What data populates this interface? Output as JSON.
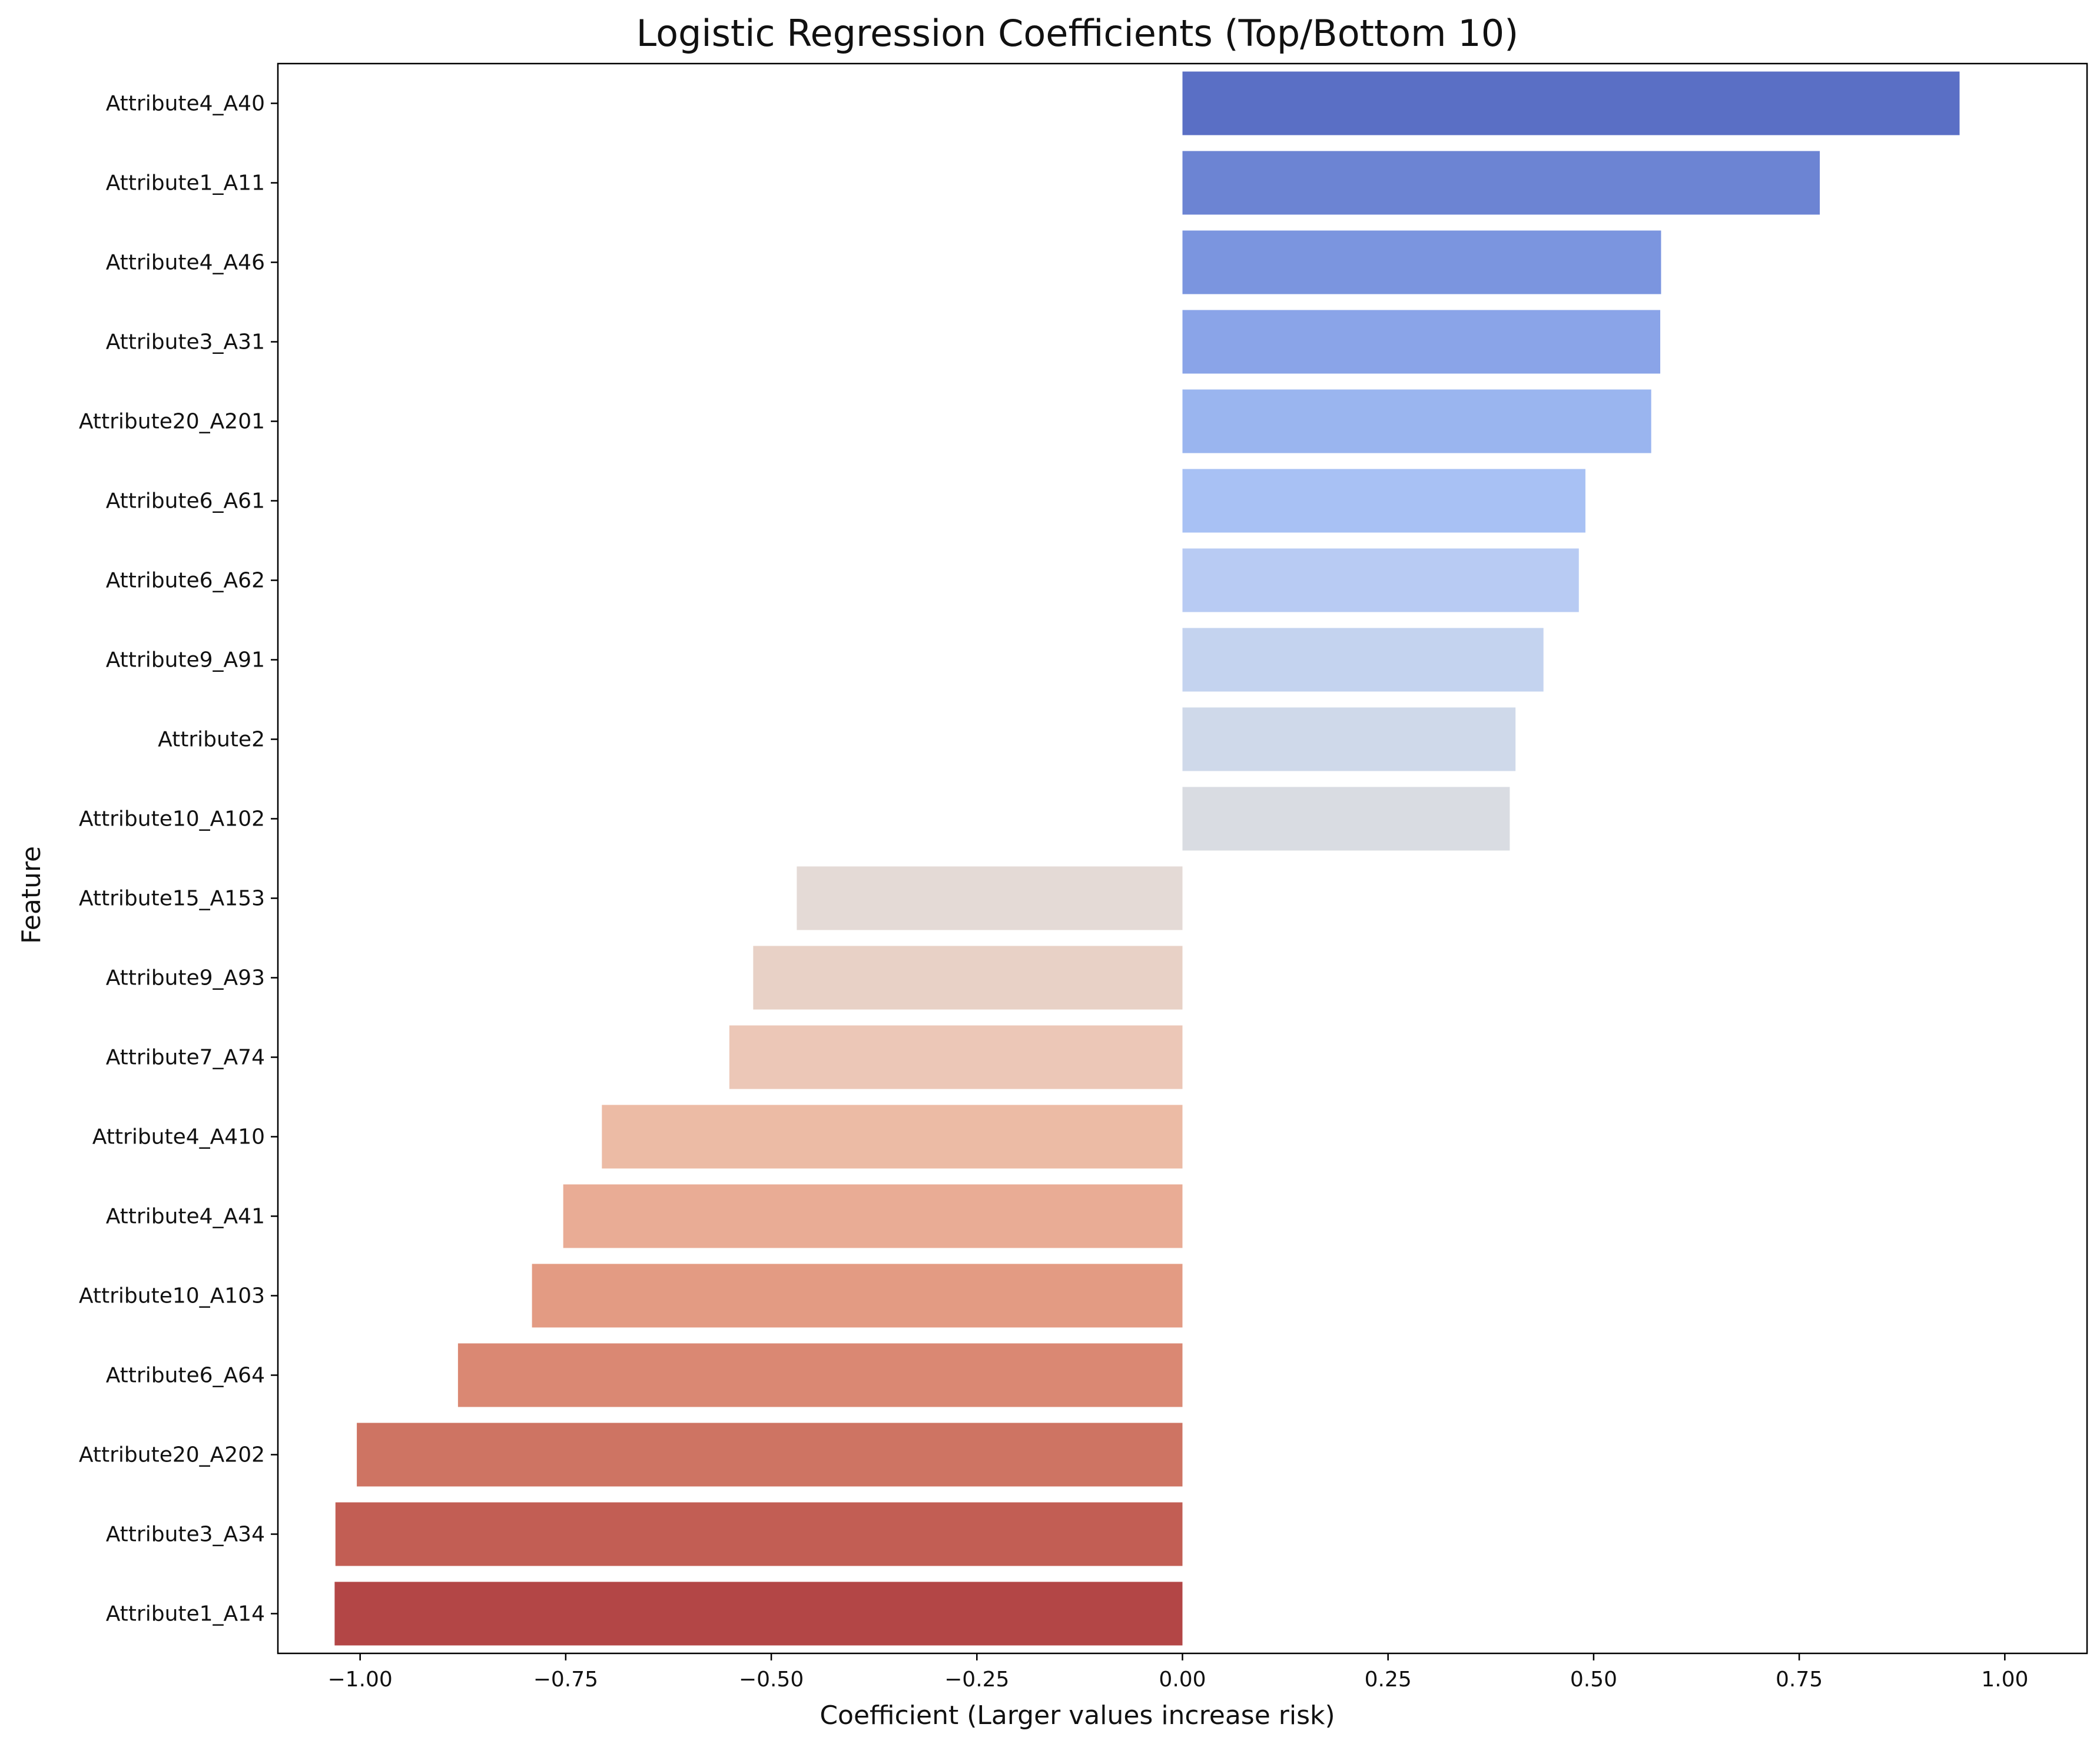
{
  "chart_data": {
    "type": "bar",
    "orientation": "horizontal",
    "title": "Logistic Regression Coefficients (Top/Bottom 10)",
    "xlabel": "Coefficient (Larger values increase risk)",
    "ylabel": "Feature",
    "xlim": [
      -1.1,
      1.1
    ],
    "xticks": [
      -1.0,
      -0.75,
      -0.5,
      -0.25,
      0.0,
      0.25,
      0.5,
      0.75,
      1.0
    ],
    "xtick_labels": [
      "−1.00",
      "−0.75",
      "−0.50",
      "−0.25",
      "0.00",
      "0.25",
      "0.50",
      "0.75",
      "1.00"
    ],
    "grid": false,
    "legend": "none",
    "palette": "coolwarm",
    "categories": [
      "Attribute4_A40",
      "Attribute1_A11",
      "Attribute4_A46",
      "Attribute3_A31",
      "Attribute20_A201",
      "Attribute6_A61",
      "Attribute6_A62",
      "Attribute9_A91",
      "Attribute2",
      "Attribute10_A102",
      "Attribute15_A153",
      "Attribute9_A93",
      "Attribute7_A74",
      "Attribute4_A410",
      "Attribute4_A41",
      "Attribute10_A103",
      "Attribute6_A64",
      "Attribute20_A202",
      "Attribute3_A34",
      "Attribute1_A14"
    ],
    "values": [
      0.945,
      0.775,
      0.582,
      0.581,
      0.57,
      0.49,
      0.482,
      0.439,
      0.405,
      0.398,
      -0.469,
      -0.522,
      -0.551,
      -0.706,
      -0.753,
      -0.791,
      -0.881,
      -1.004,
      -1.03,
      -1.031
    ],
    "colors": [
      "#5a6fc5",
      "#6c84d3",
      "#7b95df",
      "#8aa4e8",
      "#9ab5ef",
      "#a8c1f4",
      "#b8cbf3",
      "#c4d3ef",
      "#cfd9ea",
      "#d9dce2",
      "#e4dad6",
      "#e8d1c6",
      "#ecc7b7",
      "#ecbba5",
      "#e9ac95",
      "#e39b83",
      "#da8873",
      "#ce7463",
      "#c25e54",
      "#b34646"
    ]
  }
}
